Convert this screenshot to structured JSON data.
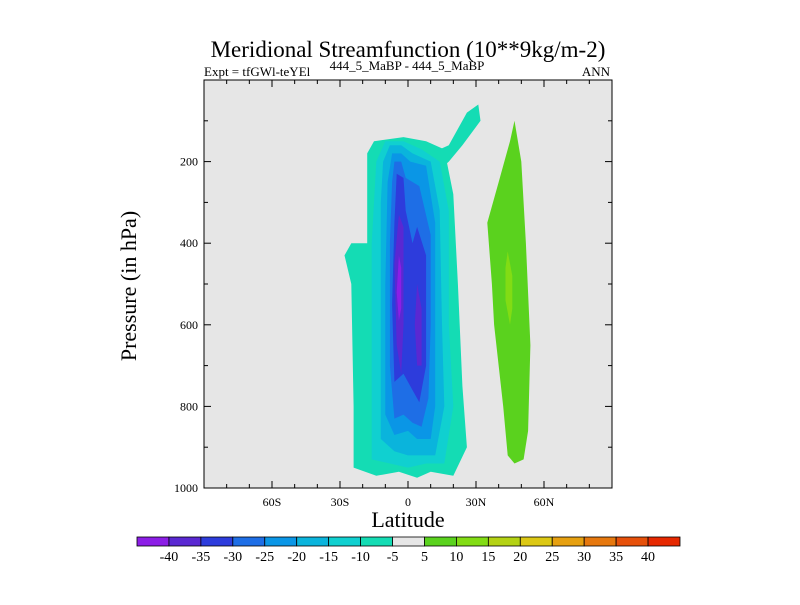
{
  "chart_data": {
    "type": "contour",
    "title": "Meridional Streamfunction (10**9kg/m-2)",
    "subtitle_left": "Expt = tfGWl-teYEl",
    "subtitle_center": "444_5_MaBP - 444_5_MaBP",
    "subtitle_right": "ANN",
    "xlabel": "Latitude",
    "ylabel": "Pressure (in hPa)",
    "xlim": [
      -90,
      90
    ],
    "ylim": [
      1000,
      0
    ],
    "x_ticks": [
      {
        "value": -60,
        "label": "60S"
      },
      {
        "value": -30,
        "label": "30S"
      },
      {
        "value": 0,
        "label": "0"
      },
      {
        "value": 30,
        "label": "30N"
      },
      {
        "value": 60,
        "label": "60N"
      }
    ],
    "y_ticks": [
      {
        "value": 200,
        "label": "200"
      },
      {
        "value": 400,
        "label": "400"
      },
      {
        "value": 600,
        "label": "600"
      },
      {
        "value": 800,
        "label": "800"
      },
      {
        "value": 1000,
        "label": "1000"
      }
    ],
    "plot_background": "#e6e6e6",
    "colorbar": {
      "boundaries": [
        "-40",
        "-35",
        "-30",
        "-25",
        "-20",
        "-15",
        "-10",
        "-5",
        "5",
        "10",
        "15",
        "20",
        "25",
        "30",
        "35",
        "40"
      ],
      "colors": [
        "#8c1ee6",
        "#5a28d2",
        "#2d3cdc",
        "#1e6ee6",
        "#0a96e6",
        "#0ab4dc",
        "#10d0d0",
        "#14dcb4",
        "#e6e6e6",
        "#5ad21e",
        "#82dc14",
        "#b4d214",
        "#dcc814",
        "#e6a010",
        "#e6780e",
        "#e6500a",
        "#e62800"
      ]
    },
    "cells": [
      {
        "name": "negative-cell-outer",
        "level": -5,
        "color": "#14dcb4",
        "outline": [
          [
            -15,
            150
          ],
          [
            -2,
            140
          ],
          [
            8,
            150
          ],
          [
            16,
            170
          ],
          [
            20,
            280
          ],
          [
            22,
            500
          ],
          [
            24,
            750
          ],
          [
            26,
            900
          ],
          [
            20,
            970
          ],
          [
            10,
            960
          ],
          [
            4,
            975
          ],
          [
            -4,
            960
          ],
          [
            -14,
            970
          ],
          [
            -24,
            950
          ],
          [
            -24,
            800
          ],
          [
            -25,
            500
          ],
          [
            -28,
            430
          ],
          [
            -25,
            400
          ],
          [
            -18,
            400
          ],
          [
            -18,
            180
          ],
          [
            -15,
            150
          ]
        ]
      },
      {
        "name": "negative-cell-n-arm",
        "level": -5,
        "color": "#14dcb4",
        "outline": [
          [
            10,
            180
          ],
          [
            18,
            160
          ],
          [
            26,
            80
          ],
          [
            31,
            60
          ],
          [
            32,
            100
          ],
          [
            24,
            160
          ],
          [
            18,
            200
          ],
          [
            14,
            220
          ]
        ]
      },
      {
        "name": "negative-cell-10",
        "level": -10,
        "color": "#10d0d0",
        "outline": [
          [
            -10,
            150
          ],
          [
            -2,
            150
          ],
          [
            6,
            170
          ],
          [
            14,
            200
          ],
          [
            18,
            320
          ],
          [
            18,
            600
          ],
          [
            20,
            800
          ],
          [
            16,
            940
          ],
          [
            8,
            940
          ],
          [
            0,
            950
          ],
          [
            -8,
            940
          ],
          [
            -16,
            930
          ],
          [
            -16,
            700
          ],
          [
            -16,
            400
          ],
          [
            -14,
            200
          ]
        ]
      },
      {
        "name": "negative-cell-15",
        "level": -15,
        "color": "#0ab4dc",
        "outline": [
          [
            -8,
            160
          ],
          [
            -3,
            160
          ],
          [
            2,
            180
          ],
          [
            10,
            200
          ],
          [
            14,
            320
          ],
          [
            15,
            600
          ],
          [
            16,
            800
          ],
          [
            12,
            920
          ],
          [
            4,
            920
          ],
          [
            0,
            920
          ],
          [
            -6,
            910
          ],
          [
            -12,
            880
          ],
          [
            -12,
            600
          ],
          [
            -12,
            300
          ],
          [
            -11,
            200
          ]
        ]
      },
      {
        "name": "negative-cell-20",
        "level": -20,
        "color": "#0a96e6",
        "outline": [
          [
            -7,
            180
          ],
          [
            -3,
            180
          ],
          [
            1,
            200
          ],
          [
            8,
            210
          ],
          [
            12,
            350
          ],
          [
            12,
            600
          ],
          [
            12,
            800
          ],
          [
            10,
            880
          ],
          [
            4,
            880
          ],
          [
            0,
            860
          ],
          [
            -6,
            870
          ],
          [
            -10,
            820
          ],
          [
            -10,
            500
          ],
          [
            -9,
            250
          ]
        ]
      },
      {
        "name": "negative-cell-25",
        "level": -25,
        "color": "#1e6ee6",
        "outline": [
          [
            -6,
            200
          ],
          [
            -3,
            200
          ],
          [
            -1,
            240
          ],
          [
            5,
            260
          ],
          [
            10,
            380
          ],
          [
            10,
            600
          ],
          [
            9,
            780
          ],
          [
            6,
            850
          ],
          [
            2,
            840
          ],
          [
            -2,
            820
          ],
          [
            -6,
            830
          ],
          [
            -8,
            700
          ],
          [
            -8,
            400
          ],
          [
            -7,
            250
          ]
        ]
      },
      {
        "name": "negative-cell-30",
        "level": -30,
        "color": "#2d3cdc",
        "outline": [
          [
            -5,
            230
          ],
          [
            -2,
            240
          ],
          [
            -1,
            320
          ],
          [
            2,
            400
          ],
          [
            4,
            360
          ],
          [
            8,
            430
          ],
          [
            8,
            700
          ],
          [
            5,
            790
          ],
          [
            2,
            760
          ],
          [
            -2,
            720
          ],
          [
            -6,
            740
          ],
          [
            -7,
            550
          ],
          [
            -6,
            350
          ]
        ]
      },
      {
        "name": "negative-cell-35-south",
        "level": -35,
        "color": "#5a28d2",
        "outline": [
          [
            -4,
            330
          ],
          [
            -2,
            360
          ],
          [
            -2,
            600
          ],
          [
            -3,
            720
          ],
          [
            -5,
            650
          ],
          [
            -6,
            450
          ]
        ]
      },
      {
        "name": "negative-cell-35-north",
        "level": -35,
        "color": "#5a28d2",
        "outline": [
          [
            4,
            500
          ],
          [
            6,
            560
          ],
          [
            6,
            700
          ],
          [
            4,
            700
          ],
          [
            3,
            600
          ]
        ]
      },
      {
        "name": "negative-cell-40",
        "level": -40,
        "color": "#8c1ee6",
        "outline": [
          [
            -4,
            430
          ],
          [
            -3,
            460
          ],
          [
            -3,
            560
          ],
          [
            -4,
            590
          ],
          [
            -5,
            520
          ]
        ]
      },
      {
        "name": "positive-cell-5",
        "level": 5,
        "color": "#5ad21e",
        "outline": [
          [
            47,
            100
          ],
          [
            50,
            200
          ],
          [
            52,
            400
          ],
          [
            54,
            650
          ],
          [
            53,
            860
          ],
          [
            51,
            930
          ],
          [
            47,
            940
          ],
          [
            44,
            920
          ],
          [
            42,
            800
          ],
          [
            38,
            600
          ],
          [
            37,
            500
          ],
          [
            35,
            350
          ],
          [
            40,
            250
          ],
          [
            45,
            150
          ]
        ]
      },
      {
        "name": "positive-cell-10",
        "level": 10,
        "color": "#82dc14",
        "outline": [
          [
            44,
            420
          ],
          [
            46,
            480
          ],
          [
            46,
            560
          ],
          [
            45,
            600
          ],
          [
            43,
            540
          ],
          [
            43,
            460
          ]
        ]
      }
    ]
  }
}
